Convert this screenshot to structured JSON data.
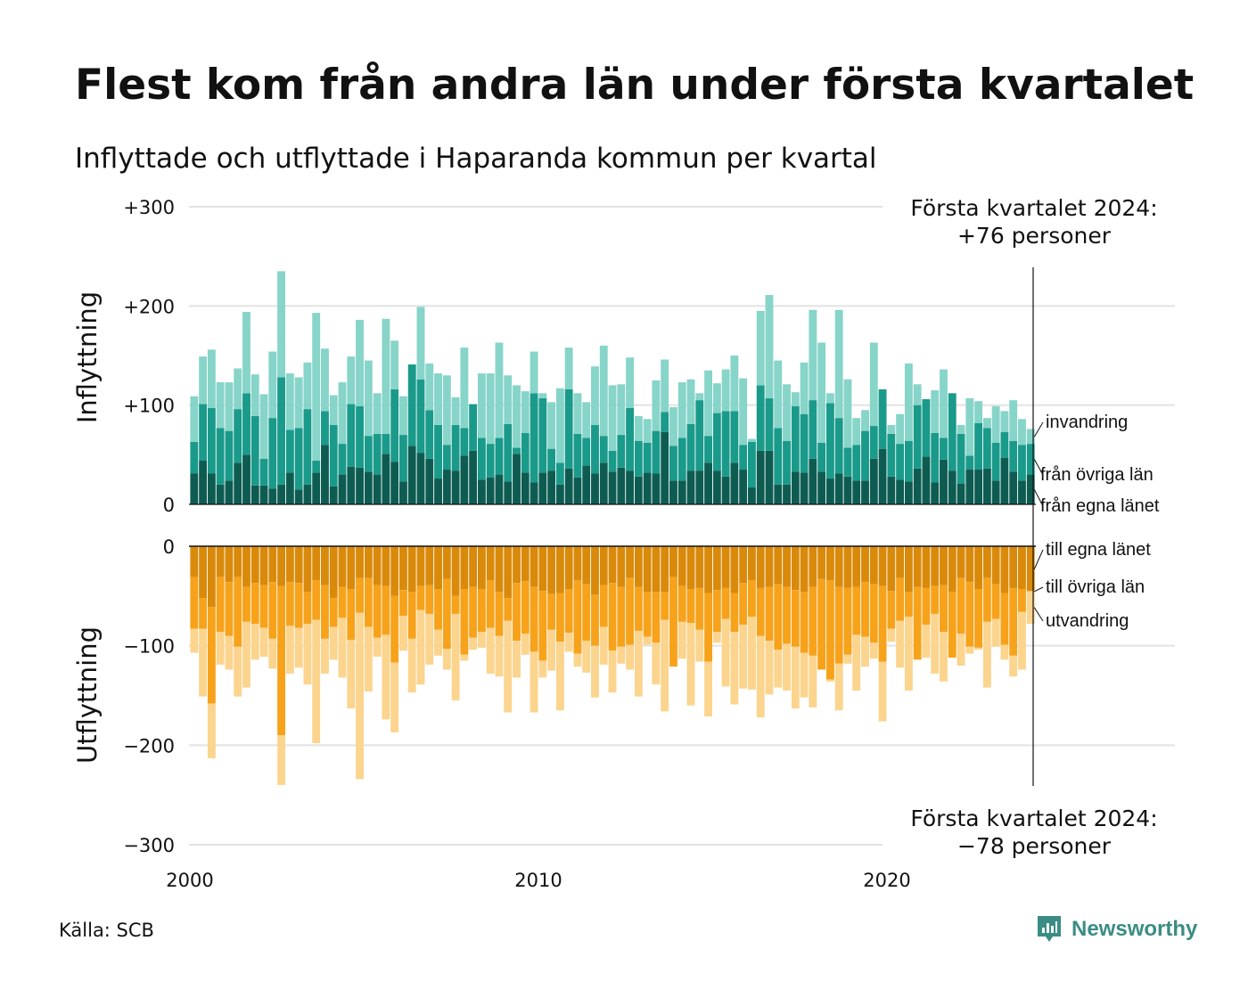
{
  "title": "Flest kom från andra län under första kvartalet",
  "subtitle": "Inflyttade och utflyttade i Haparanda kommun per kvartal",
  "source": "Källa: SCB",
  "brand": "Newsworthy",
  "callout_in": {
    "line1": "Första kvartalet 2024:",
    "line2": "+76 personer"
  },
  "callout_out": {
    "line1": "Första kvartalet 2024:",
    "line2": "−78 personer"
  },
  "colors": {
    "in_own": "#0e5c51",
    "in_other": "#1a9a8a",
    "in_intl": "#87d4c9",
    "out_own": "#d98a0b",
    "out_other": "#f7a21b",
    "out_intl": "#fbd48e",
    "grid": "#e2e2e2",
    "brand": "#3a8d84"
  },
  "chart_data": {
    "type": "bar",
    "stacked": true,
    "x_start": "2000 Q1",
    "x_end": "2024 Q1",
    "x_ticks": [
      "2000",
      "2010",
      "2020"
    ],
    "ylabel_top": "Inflyttning",
    "ylabel_bottom": "Utflyttning",
    "y_ticks_top": [
      "+300",
      "+200",
      "+100",
      "0"
    ],
    "y_ticks_bottom": [
      "0",
      "−100",
      "−200",
      "−300"
    ],
    "ylim_top": [
      0,
      300
    ],
    "ylim_bottom": [
      -300,
      0
    ],
    "grid": true,
    "series_in": [
      {
        "name": "från egna länet",
        "values": [
          31,
          44,
          31,
          20,
          24,
          42,
          50,
          19,
          19,
          16,
          20,
          32,
          15,
          20,
          32,
          60,
          18,
          30,
          38,
          37,
          33,
          30,
          51,
          43,
          23,
          59,
          52,
          46,
          26,
          35,
          34,
          49,
          54,
          25,
          27,
          30,
          23,
          51,
          32,
          22,
          32,
          34,
          20,
          36,
          27,
          39,
          31,
          42,
          33,
          37,
          34,
          28,
          32,
          31,
          73,
          24,
          24,
          34,
          34,
          42,
          34,
          28,
          42,
          35,
          17,
          54,
          54,
          20,
          20,
          33,
          32,
          46,
          33,
          26,
          31,
          28,
          24,
          24,
          46,
          56,
          28,
          25,
          23,
          36,
          48,
          22,
          45,
          34,
          21,
          35,
          35,
          36,
          24,
          47,
          33,
          24,
          30
        ]
      },
      {
        "name": "från övriga län",
        "values": [
          63,
          101,
          97,
          77,
          74,
          96,
          112,
          89,
          46,
          87,
          128,
          75,
          77,
          96,
          44,
          94,
          80,
          61,
          101,
          99,
          69,
          71,
          71,
          116,
          70,
          141,
          126,
          95,
          80,
          60,
          80,
          77,
          101,
          67,
          61,
          67,
          81,
          57,
          72,
          112,
          107,
          56,
          42,
          116,
          71,
          67,
          80,
          69,
          54,
          70,
          97,
          64,
          62,
          74,
          93,
          59,
          67,
          81,
          105,
          69,
          92,
          94,
          94,
          60,
          63,
          120,
          107,
          77,
          64,
          99,
          91,
          105,
          62,
          102,
          87,
          57,
          60,
          74,
          79,
          116,
          71,
          61,
          64,
          100,
          106,
          72,
          67,
          112,
          71,
          49,
          82,
          77,
          62,
          73,
          64,
          60,
          61
        ]
      },
      {
        "name": "invandring",
        "values": [
          109,
          149,
          156,
          123,
          123,
          137,
          194,
          131,
          111,
          154,
          235,
          132,
          128,
          143,
          193,
          157,
          110,
          123,
          149,
          186,
          145,
          112,
          187,
          165,
          109,
          116,
          199,
          142,
          132,
          130,
          108,
          158,
          101,
          132,
          132,
          163,
          130,
          120,
          114,
          154,
          112,
          103,
          117,
          158,
          112,
          103,
          139,
          160,
          120,
          121,
          148,
          89,
          86,
          125,
          146,
          98,
          123,
          126,
          112,
          135,
          122,
          136,
          150,
          127,
          66,
          195,
          211,
          145,
          121,
          113,
          143,
          196,
          163,
          112,
          196,
          126,
          87,
          95,
          163,
          90,
          80,
          91,
          142,
          121,
          102,
          115,
          136,
          84,
          80,
          107,
          104,
          87,
          99,
          94,
          105,
          86,
          76
        ]
      }
    ],
    "series_out": [
      {
        "name": "till egna länet",
        "values": [
          -31,
          -52,
          -61,
          -31,
          -36,
          -31,
          -41,
          -37,
          -39,
          -36,
          -40,
          -36,
          -37,
          -46,
          -34,
          -39,
          -52,
          -41,
          -43,
          -32,
          -32,
          -39,
          -40,
          -50,
          -44,
          -46,
          -40,
          -39,
          -43,
          -33,
          -50,
          -43,
          -41,
          -43,
          -34,
          -46,
          -52,
          -37,
          -35,
          -41,
          -45,
          -48,
          -47,
          -43,
          -34,
          -38,
          -49,
          -39,
          -37,
          -41,
          -32,
          -41,
          -46,
          -46,
          -46,
          -31,
          -40,
          -43,
          -42,
          -47,
          -44,
          -42,
          -47,
          -37,
          -34,
          -42,
          -41,
          -38,
          -41,
          -44,
          -46,
          -41,
          -33,
          -34,
          -41,
          -42,
          -41,
          -36,
          -38,
          -40,
          -45,
          -32,
          -46,
          -41,
          -42,
          -40,
          -39,
          -46,
          -32,
          -36,
          -43,
          -32,
          -38,
          -47,
          -42,
          -43,
          -46
        ]
      },
      {
        "name": "till övriga län",
        "values": [
          -83,
          -83,
          -158,
          -86,
          -90,
          -101,
          -76,
          -78,
          -82,
          -93,
          -190,
          -80,
          -82,
          -78,
          -74,
          -93,
          -81,
          -72,
          -94,
          -67,
          -81,
          -92,
          -89,
          -117,
          -70,
          -93,
          -64,
          -68,
          -84,
          -103,
          -68,
          -109,
          -92,
          -86,
          -82,
          -90,
          -75,
          -95,
          -88,
          -106,
          -115,
          -84,
          -96,
          -87,
          -108,
          -95,
          -100,
          -81,
          -105,
          -101,
          -99,
          -85,
          -91,
          -97,
          -74,
          -121,
          -76,
          -77,
          -84,
          -116,
          -86,
          -73,
          -86,
          -79,
          -71,
          -90,
          -95,
          -104,
          -98,
          -101,
          -107,
          -110,
          -124,
          -134,
          -118,
          -109,
          -89,
          -91,
          -97,
          -116,
          -83,
          -75,
          -71,
          -114,
          -79,
          -68,
          -86,
          -112,
          -88,
          -101,
          -102,
          -76,
          -73,
          -99,
          -110,
          -66,
          -45
        ]
      },
      {
        "name": "utvandring",
        "values": [
          -107,
          -151,
          -213,
          -119,
          -124,
          -151,
          -142,
          -114,
          -111,
          -123,
          -240,
          -128,
          -122,
          -139,
          -198,
          -128,
          -114,
          -132,
          -163,
          -234,
          -146,
          -111,
          -174,
          -187,
          -105,
          -147,
          -139,
          -119,
          -110,
          -124,
          -155,
          -115,
          -104,
          -102,
          -128,
          -131,
          -167,
          -132,
          -109,
          -167,
          -132,
          -125,
          -165,
          -106,
          -121,
          -127,
          -152,
          -119,
          -147,
          -118,
          -124,
          -151,
          -99,
          -139,
          -166,
          -121,
          -113,
          -160,
          -116,
          -171,
          -97,
          -141,
          -159,
          -143,
          -144,
          -172,
          -149,
          -142,
          -145,
          -163,
          -152,
          -162,
          -116,
          -136,
          -165,
          -118,
          -145,
          -121,
          -113,
          -176,
          -96,
          -122,
          -145,
          -108,
          -112,
          -128,
          -136,
          -101,
          -120,
          -108,
          -104,
          -142,
          -101,
          -114,
          -131,
          -124,
          -78
        ]
      }
    ]
  }
}
